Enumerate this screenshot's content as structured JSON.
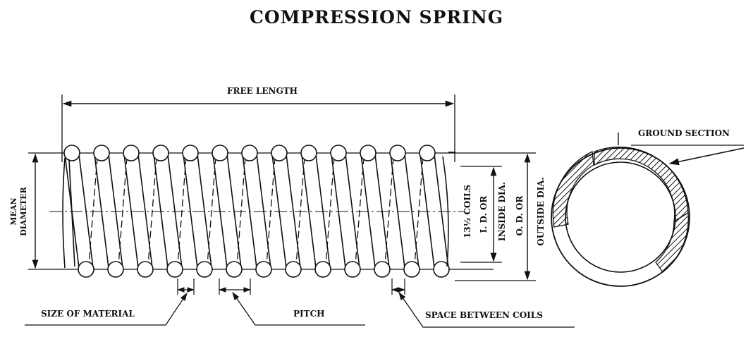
{
  "title": "COMPRESSION SPRING",
  "labels": {
    "free_length": "FREE LENGTH",
    "mean_diameter_line1": "MEAN",
    "mean_diameter_line2": "DIAMETER",
    "coils": "13½ COILS",
    "inside_dia_line1": "I. D. OR",
    "inside_dia_line2": "INSIDE DIA.",
    "outside_dia_line1": "O. D. OR",
    "outside_dia_line2": "OUTSIDE DIA.",
    "ground_section": "GROUND SECTION",
    "size_of_material": "SIZE OF MATERIAL",
    "pitch": "PITCH",
    "space_between_coils": "SPACE BETWEEN COILS"
  }
}
